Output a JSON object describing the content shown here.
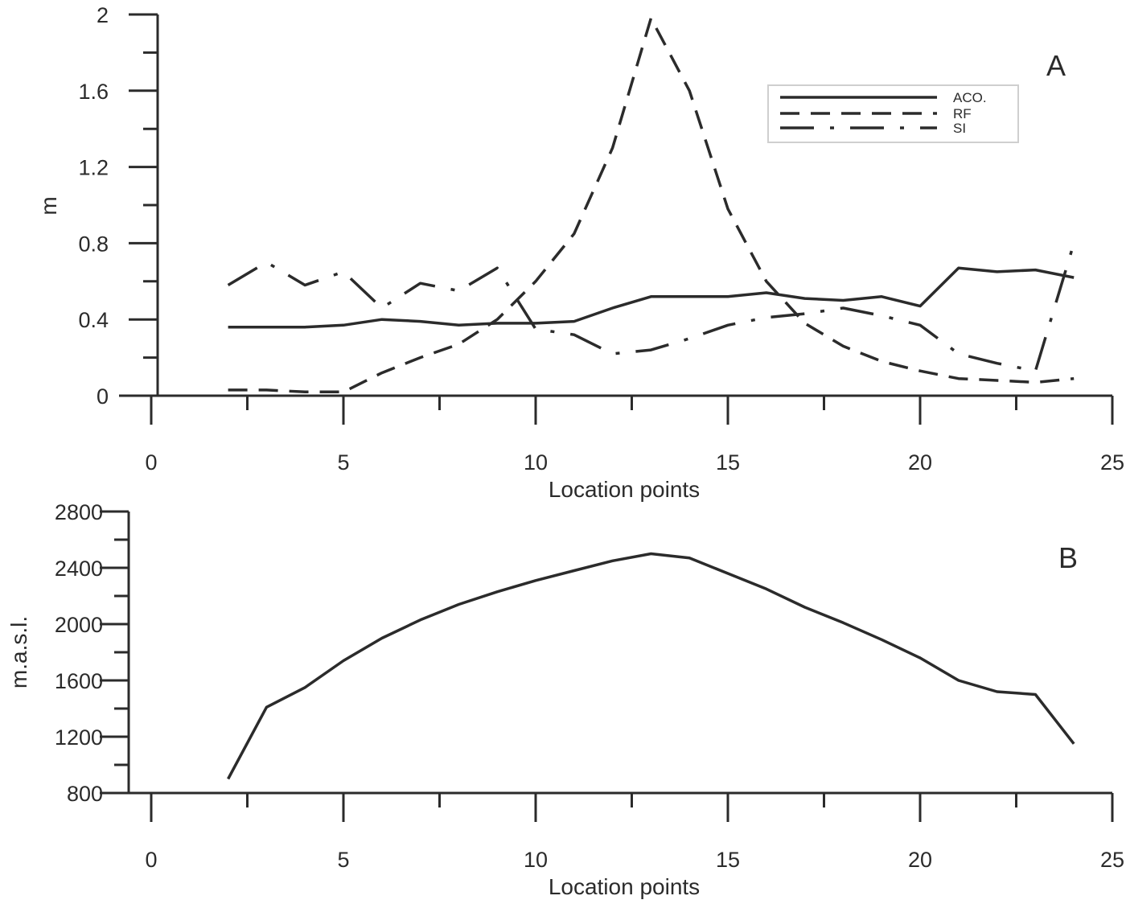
{
  "chart_data": [
    {
      "type": "line",
      "panel_label": "A",
      "title": "",
      "xlabel": "Location points",
      "ylabel": "m",
      "xlim": [
        0,
        25
      ],
      "ylim": [
        0,
        2
      ],
      "x_ticks": [
        0,
        5,
        10,
        15,
        20,
        25
      ],
      "y_ticks": [
        0,
        0.4,
        0.8,
        1.2,
        1.6,
        2
      ],
      "grid": false,
      "legend_position": "top-right",
      "x": [
        2,
        3,
        4,
        5,
        6,
        7,
        8,
        9,
        10,
        11,
        12,
        13,
        14,
        15,
        16,
        17,
        18,
        19,
        20,
        21,
        22,
        23,
        24
      ],
      "series": [
        {
          "name": "ACO.",
          "style": "solid",
          "values": [
            0.36,
            0.36,
            0.36,
            0.37,
            0.4,
            0.39,
            0.37,
            0.38,
            0.38,
            0.39,
            0.46,
            0.52,
            0.52,
            0.52,
            0.54,
            0.51,
            0.5,
            0.52,
            0.47,
            0.67,
            0.65,
            0.66,
            0.62
          ]
        },
        {
          "name": "RF",
          "style": "dashed",
          "values": [
            0.03,
            0.03,
            0.02,
            0.02,
            0.12,
            0.2,
            0.27,
            0.4,
            0.6,
            0.85,
            1.3,
            1.98,
            1.6,
            0.98,
            0.6,
            0.38,
            0.26,
            0.18,
            0.13,
            0.09,
            0.08,
            0.07,
            0.09
          ]
        },
        {
          "name": "SI",
          "style": "dash-dot",
          "values": [
            0.58,
            0.7,
            0.58,
            0.65,
            0.46,
            0.59,
            0.55,
            0.67,
            0.35,
            0.32,
            0.22,
            0.24,
            0.3,
            0.37,
            0.41,
            0.43,
            0.46,
            0.42,
            0.37,
            0.22,
            0.17,
            0.13,
            0.8
          ]
        }
      ]
    },
    {
      "type": "line",
      "panel_label": "B",
      "title": "",
      "xlabel": "Location points",
      "ylabel": "m.a.s.l.",
      "xlim": [
        0,
        25
      ],
      "ylim": [
        800,
        2800
      ],
      "x_ticks": [
        0,
        5,
        10,
        15,
        20,
        25
      ],
      "y_ticks": [
        800,
        1200,
        1600,
        2000,
        2400,
        2800
      ],
      "grid": false,
      "x": [
        2,
        3,
        4,
        5,
        6,
        7,
        8,
        9,
        10,
        11,
        12,
        13,
        14,
        15,
        16,
        17,
        18,
        19,
        20,
        21,
        22,
        23,
        24
      ],
      "series": [
        {
          "style": "solid",
          "values": [
            900,
            1410,
            1550,
            1740,
            1900,
            2030,
            2140,
            2230,
            2310,
            2380,
            2450,
            2500,
            2470,
            2360,
            2250,
            2120,
            2010,
            1890,
            1760,
            1600,
            1520,
            1500,
            1150
          ]
        }
      ]
    }
  ]
}
